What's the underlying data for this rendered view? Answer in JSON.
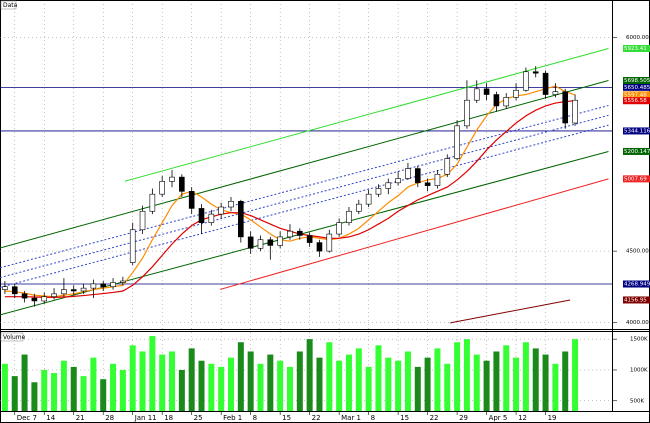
{
  "chart_data": {
    "type": "candlestick",
    "title": "Data",
    "categories": [
      null,
      "Dec 7",
      null,
      null,
      "14",
      null,
      null,
      "21",
      null,
      null,
      "28",
      null,
      null,
      "Jan 11",
      null,
      null,
      "18",
      null,
      null,
      "25",
      null,
      null,
      "Feb 1",
      null,
      null,
      "8",
      null,
      null,
      "15",
      null,
      null,
      "22",
      null,
      null,
      "Mar 1",
      null,
      null,
      "8",
      null,
      null,
      "15",
      null,
      null,
      "22",
      null,
      null,
      "29",
      null,
      null,
      "Apr 5",
      null,
      null,
      "12",
      null,
      null,
      "19",
      null,
      null,
      null
    ],
    "open": [
      4230,
      4250,
      4200,
      4170,
      4150,
      4180,
      4200,
      4230,
      4220,
      4240,
      4270,
      4250,
      4280,
      4420,
      4650,
      4780,
      4900,
      4990,
      5020,
      4920,
      4800,
      4700,
      4760,
      4810,
      4850,
      4600,
      4520,
      4580,
      4540,
      4600,
      4640,
      4610,
      4560,
      4500,
      4620,
      4700,
      4780,
      4830,
      4900,
      4940,
      4980,
      5010,
      5080,
      4980,
      4960,
      5040,
      5150,
      5380,
      5560,
      5640,
      5600,
      5520,
      5580,
      5630,
      5760,
      5750,
      5600,
      5620,
      5400
    ],
    "high": [
      4290,
      4270,
      4220,
      4200,
      4210,
      4240,
      4310,
      4260,
      4270,
      4300,
      4290,
      4310,
      4320,
      4700,
      4820,
      4940,
      5030,
      5070,
      5040,
      4950,
      4830,
      4790,
      4840,
      4880,
      4860,
      4640,
      4610,
      4600,
      4640,
      4690,
      4660,
      4630,
      4580,
      4650,
      4730,
      4810,
      4860,
      4930,
      4970,
      5010,
      5060,
      5120,
      5100,
      5010,
      5070,
      5180,
      5420,
      5700,
      5700,
      5680,
      5620,
      5610,
      5680,
      5790,
      5800,
      5770,
      5680,
      5640,
      5600
    ],
    "low": [
      4200,
      4170,
      4140,
      4110,
      4130,
      4160,
      4180,
      4190,
      4200,
      4170,
      4220,
      4230,
      4260,
      4400,
      4620,
      4760,
      4880,
      4950,
      4880,
      4760,
      4620,
      4680,
      4730,
      4780,
      4560,
      4480,
      4500,
      4440,
      4520,
      4580,
      4580,
      4530,
      4460,
      4490,
      4600,
      4680,
      4760,
      4810,
      4880,
      4900,
      4960,
      5000,
      4950,
      4920,
      4940,
      5020,
      5140,
      5360,
      5540,
      5560,
      5480,
      5500,
      5560,
      5620,
      5720,
      5570,
      5580,
      5360,
      5380
    ],
    "close": [
      4250,
      4200,
      4170,
      4150,
      4180,
      4200,
      4230,
      4220,
      4240,
      4270,
      4250,
      4280,
      4290,
      4650,
      4780,
      4900,
      4990,
      5020,
      4920,
      4800,
      4700,
      4760,
      4810,
      4850,
      4600,
      4520,
      4580,
      4540,
      4600,
      4640,
      4610,
      4560,
      4500,
      4620,
      4700,
      4780,
      4830,
      4900,
      4940,
      4980,
      5010,
      5080,
      4980,
      4960,
      5040,
      5150,
      5380,
      5560,
      5640,
      5600,
      5520,
      5580,
      5630,
      5760,
      5750,
      5600,
      5620,
      5400,
      5560
    ],
    "up_color": "#ffffff",
    "down_color": "#000000",
    "moving_averages": [
      {
        "color": "#ff8c00",
        "values": [
          4220,
          4215,
          4205,
          4190,
          4185,
          4180,
          4190,
          4200,
          4215,
          4230,
          4240,
          4250,
          4260,
          4350,
          4450,
          4580,
          4700,
          4820,
          4900,
          4920,
          4880,
          4830,
          4790,
          4770,
          4760,
          4720,
          4670,
          4620,
          4580,
          4570,
          4590,
          4600,
          4590,
          4580,
          4590,
          4620,
          4660,
          4720,
          4780,
          4840,
          4890,
          4950,
          4980,
          5000,
          5010,
          5040,
          5110,
          5230,
          5350,
          5450,
          5530,
          5570,
          5590,
          5600,
          5620,
          5640,
          5660,
          5620,
          5597.48
        ]
      },
      {
        "color": "#e00000",
        "values": [
          4180,
          4180,
          4180,
          4178,
          4176,
          4175,
          4178,
          4182,
          4188,
          4195,
          4202,
          4210,
          4220,
          4260,
          4320,
          4390,
          4470,
          4550,
          4620,
          4680,
          4720,
          4740,
          4760,
          4770,
          4770,
          4750,
          4720,
          4690,
          4660,
          4640,
          4620,
          4610,
          4600,
          4590,
          4590,
          4600,
          4620,
          4650,
          4690,
          4730,
          4780,
          4820,
          4860,
          4890,
          4920,
          4950,
          5000,
          5060,
          5130,
          5210,
          5280,
          5340,
          5400,
          5450,
          5490,
          5520,
          5540,
          5550,
          5556.58
        ]
      }
    ],
    "trendlines": [
      {
        "color": "#33dd33",
        "x": [
          12.2,
          61.4
        ],
        "values": [
          4991,
          5923.41
        ],
        "labeled": true
      },
      {
        "color": "#006400",
        "x": [
          -0.5,
          61.4
        ],
        "values": [
          4522,
          5698.5056
        ],
        "labeled": true
      },
      {
        "color": "#006400",
        "x": [
          -0.5,
          61.4
        ],
        "values": [
          4052,
          5200.1478
        ],
        "labeled": true
      },
      {
        "color": "#3344cc",
        "x": [
          -0.5,
          61.4
        ],
        "values": [
          4383,
          5523
        ],
        "labeled": false,
        "dashed": true
      },
      {
        "color": "#3344cc",
        "x": [
          -0.5,
          61.4
        ],
        "values": [
          4314,
          5454
        ],
        "labeled": false,
        "dashed": true
      },
      {
        "color": "#3344cc",
        "x": [
          -0.5,
          61.4
        ],
        "values": [
          4245,
          5385
        ],
        "labeled": false,
        "dashed": true
      },
      {
        "color": "#ee2222",
        "x": [
          21.9,
          61.4
        ],
        "values": [
          4231,
          5007.69
        ],
        "labeled": true
      },
      {
        "color": "#800000",
        "x": [
          45.3,
          57.5
        ],
        "values": [
          3996,
          4156.95
        ],
        "labeled": true
      }
    ],
    "hlines": {
      "color": "#000080",
      "values": [
        5650.4856,
        5344.1168,
        4268.9496
      ]
    },
    "ylim": [
      3960,
      6250
    ],
    "yticks": [
      {
        "value": 4000,
        "label": "4000.00"
      },
      {
        "value": 4500,
        "label": "4500.00"
      },
      {
        "value": 6000,
        "label": "6000.00"
      }
    ],
    "grid": true,
    "volume": {
      "title": "Volume",
      "up_color": "#33ff33",
      "down_color": "#1a8a1a",
      "values": [
        1100000,
        900000,
        1250000,
        800000,
        1000000,
        950000,
        1150000,
        1050000,
        900000,
        1200000,
        850000,
        1100000,
        1000000,
        1400000,
        1300000,
        1550000,
        1250000,
        1300000,
        1000000,
        1350000,
        1150000,
        1100000,
        1050000,
        1200000,
        1450000,
        1300000,
        1100000,
        1250000,
        1150000,
        1050000,
        1300000,
        1500000,
        1200000,
        1450000,
        1150000,
        1250000,
        1350000,
        1050000,
        1400000,
        1200000,
        1150000,
        1300000,
        1050000,
        1200000,
        1350000,
        1100000,
        1450000,
        1500000,
        1250000,
        1150000,
        1300000,
        1400000,
        1200000,
        1450000,
        1350000,
        1250000,
        1100000,
        1300000,
        1500000
      ],
      "ylim": [
        350000,
        1600000
      ],
      "yticks": [
        {
          "value": 500000,
          "label": "500K"
        },
        {
          "value": 1000000,
          "label": "1000K"
        },
        {
          "value": 1500000,
          "label": "1500K"
        }
      ]
    }
  }
}
